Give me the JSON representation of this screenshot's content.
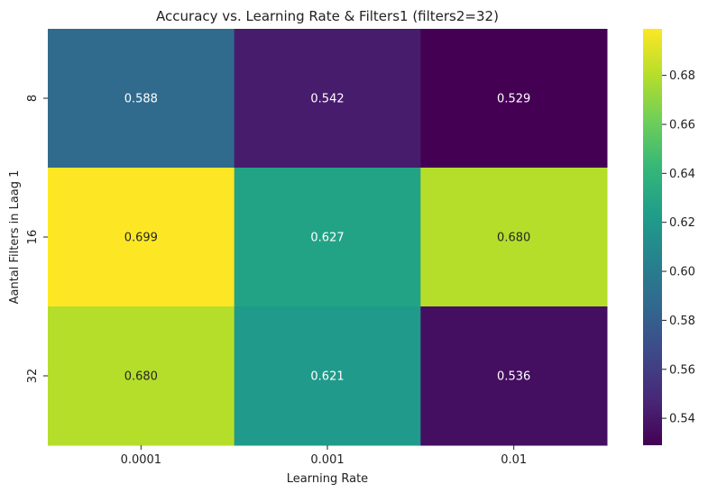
{
  "chart_data": {
    "type": "heatmap",
    "title": "Accuracy vs. Learning Rate & Filters1 (filters2=32)",
    "xlabel": "Learning Rate",
    "ylabel": "Aantal Filters in Laag 1",
    "x_categories": [
      "0.0001",
      "0.001",
      "0.01"
    ],
    "y_categories": [
      "8",
      "16",
      "32"
    ],
    "values": [
      [
        0.588,
        0.542,
        0.529
      ],
      [
        0.699,
        0.627,
        0.68
      ],
      [
        0.68,
        0.621,
        0.536
      ]
    ],
    "cell_labels": [
      [
        "0.588",
        "0.542",
        "0.529"
      ],
      [
        "0.699",
        "0.627",
        "0.680"
      ],
      [
        "0.680",
        "0.621",
        "0.536"
      ]
    ],
    "colormap": "viridis",
    "colorbar": {
      "range": [
        0.529,
        0.699
      ],
      "ticks": [
        "0.54",
        "0.56",
        "0.58",
        "0.60",
        "0.62",
        "0.64",
        "0.66",
        "0.68"
      ]
    }
  }
}
